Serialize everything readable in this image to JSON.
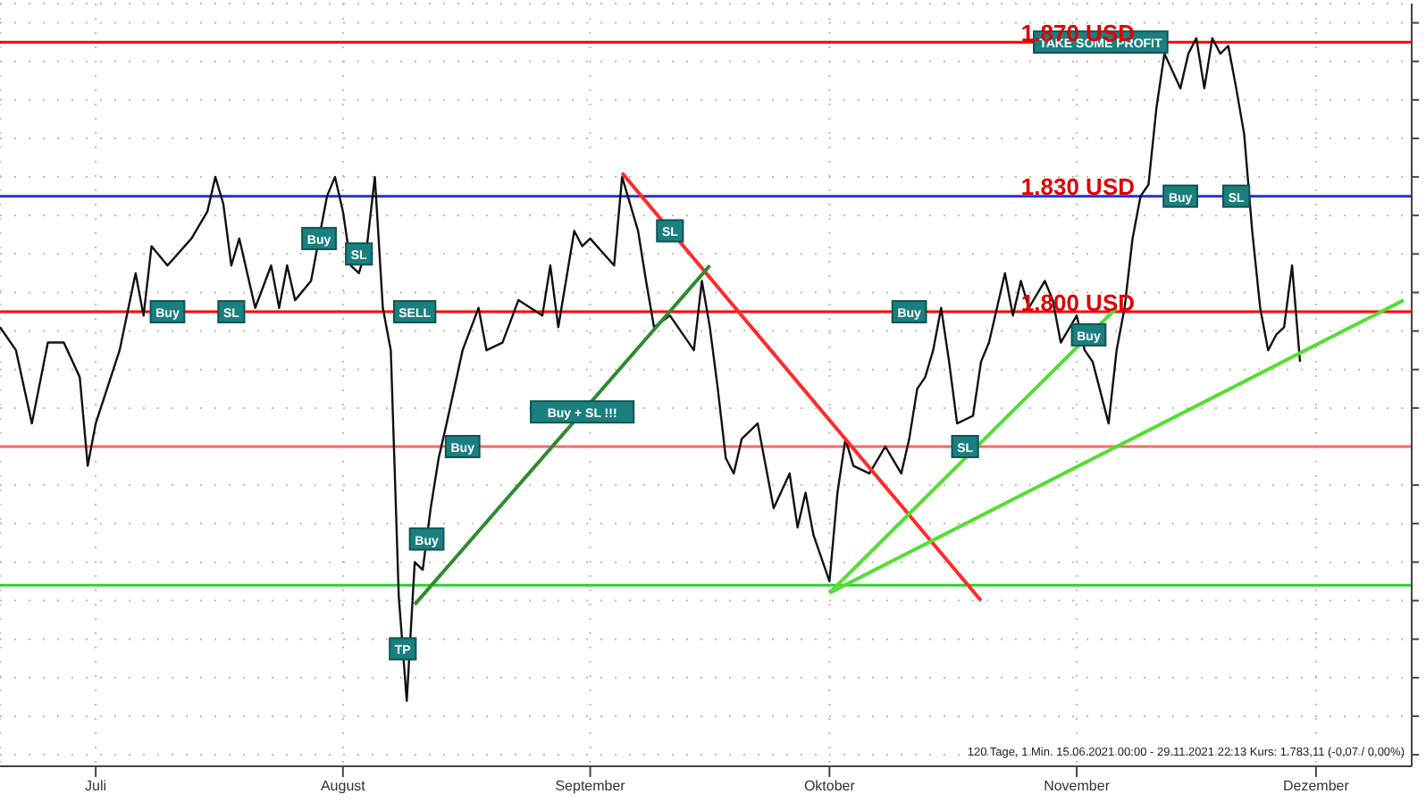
{
  "chart_data": {
    "type": "line",
    "xlim": [
      "2021-06-19",
      "2021-12-13"
    ],
    "xticks": [
      {
        "value": "2021-07-01",
        "label": "Juli"
      },
      {
        "value": "2021-08-01",
        "label": "August"
      },
      {
        "value": "2021-09-01",
        "label": "September"
      },
      {
        "value": "2021-10-01",
        "label": "Oktober"
      },
      {
        "value": "2021-11-01",
        "label": "November"
      },
      {
        "value": "2021-12-01",
        "label": "Dezember"
      }
    ],
    "ylim": [
      1682,
      1880
    ],
    "yticks": [
      {
        "value": 1685,
        "label": null
      },
      {
        "value": 1695,
        "label": null
      },
      {
        "value": 1705,
        "label": null
      },
      {
        "value": 1715,
        "label": null
      },
      {
        "value": 1725,
        "label": null
      },
      {
        "value": 1735,
        "label": null
      },
      {
        "value": 1745,
        "label": null
      },
      {
        "value": 1755,
        "label": null
      },
      {
        "value": 1775,
        "label": null
      },
      {
        "value": 1785,
        "label": null
      },
      {
        "value": 1795,
        "label": null
      },
      {
        "value": 1805,
        "label": null
      },
      {
        "value": 1815,
        "label": null
      },
      {
        "value": 1825,
        "label": null
      },
      {
        "value": 1835,
        "label": null
      },
      {
        "value": 1845,
        "label": null
      },
      {
        "value": 1855,
        "label": null
      },
      {
        "value": 1865,
        "label": null
      },
      {
        "value": 1875,
        "label": null
      }
    ],
    "tick_labels": "x",
    "grid": true,
    "marker": "none",
    "series": [
      {
        "color": "#111111",
        "x": [
          "2021-06-19",
          "2021-06-21",
          "2021-06-23",
          "2021-06-25",
          "2021-06-27",
          "2021-06-29",
          "2021-06-30",
          "2021-07-01",
          "2021-07-04",
          "2021-07-06",
          "2021-07-07",
          "2021-07-08",
          "2021-07-10",
          "2021-07-13",
          "2021-07-15",
          "2021-07-16",
          "2021-07-17",
          "2021-07-18",
          "2021-07-19",
          "2021-07-21",
          "2021-07-23",
          "2021-07-24",
          "2021-07-25",
          "2021-07-26",
          "2021-07-28",
          "2021-07-30",
          "2021-07-31",
          "2021-08-01",
          "2021-08-02",
          "2021-08-03",
          "2021-08-04",
          "2021-08-05",
          "2021-08-06",
          "2021-08-07",
          "2021-08-08",
          "2021-08-09",
          "2021-08-10",
          "2021-08-11",
          "2021-08-12",
          "2021-08-13",
          "2021-08-14",
          "2021-08-16",
          "2021-08-18",
          "2021-08-19",
          "2021-08-21",
          "2021-08-23",
          "2021-08-26",
          "2021-08-27",
          "2021-08-28",
          "2021-08-30",
          "2021-08-31",
          "2021-09-01",
          "2021-09-04",
          "2021-09-05",
          "2021-09-07",
          "2021-09-08",
          "2021-09-09",
          "2021-09-11",
          "2021-09-14",
          "2021-09-15",
          "2021-09-16",
          "2021-09-17",
          "2021-09-18",
          "2021-09-19",
          "2021-09-20",
          "2021-09-22",
          "2021-09-23",
          "2021-09-24",
          "2021-09-26",
          "2021-09-27",
          "2021-09-28",
          "2021-09-29",
          "2021-10-01",
          "2021-10-02",
          "2021-10-03",
          "2021-10-04",
          "2021-10-06",
          "2021-10-08",
          "2021-10-10",
          "2021-10-11",
          "2021-10-12",
          "2021-10-13",
          "2021-10-14",
          "2021-10-15",
          "2021-10-16",
          "2021-10-17",
          "2021-10-19",
          "2021-10-20",
          "2021-10-21",
          "2021-10-22",
          "2021-10-23",
          "2021-10-24",
          "2021-10-25",
          "2021-10-26",
          "2021-10-28",
          "2021-10-29",
          "2021-10-30",
          "2021-11-01",
          "2021-11-02",
          "2021-11-03",
          "2021-11-05",
          "2021-11-06",
          "2021-11-07",
          "2021-11-08",
          "2021-11-09",
          "2021-11-10",
          "2021-11-11",
          "2021-11-12",
          "2021-11-14",
          "2021-11-15",
          "2021-11-16",
          "2021-11-17",
          "2021-11-18",
          "2021-11-19",
          "2021-11-20",
          "2021-11-21",
          "2021-11-22",
          "2021-11-23",
          "2021-11-24",
          "2021-11-25",
          "2021-11-26",
          "2021-11-27",
          "2021-11-28",
          "2021-11-29"
        ],
        "values": [
          1796,
          1790,
          1771,
          1792,
          1792,
          1783,
          1760,
          1771,
          1790,
          1810,
          1799,
          1817,
          1812,
          1819,
          1826,
          1835,
          1828,
          1812,
          1819,
          1801,
          1812,
          1801,
          1812,
          1803,
          1808,
          1830,
          1835,
          1826,
          1812,
          1810,
          1817,
          1835,
          1801,
          1790,
          1726,
          1699,
          1735,
          1733,
          1749,
          1762,
          1771,
          1790,
          1801,
          1790,
          1792,
          1803,
          1799,
          1812,
          1796,
          1821,
          1817,
          1819,
          1812,
          1835,
          1821,
          1808,
          1796,
          1799,
          1790,
          1808,
          1796,
          1780,
          1762,
          1758,
          1767,
          1771,
          1760,
          1749,
          1758,
          1744,
          1753,
          1742,
          1730,
          1753,
          1767,
          1760,
          1758,
          1765,
          1758,
          1767,
          1780,
          1783,
          1790,
          1801,
          1787,
          1771,
          1773,
          1787,
          1792,
          1801,
          1810,
          1799,
          1808,
          1801,
          1808,
          1803,
          1792,
          1799,
          1790,
          1787,
          1771,
          1790,
          1801,
          1819,
          1830,
          1833,
          1853,
          1867,
          1858,
          1867,
          1871,
          1858,
          1871,
          1867,
          1869,
          1858,
          1846,
          1821,
          1801,
          1790,
          1794,
          1796,
          1812,
          1787
        ]
      },
      {
        "color": "#ff2a2a",
        "x": [
          "2021-09-05",
          "2021-10-20"
        ],
        "values": [
          1836,
          1725
        ]
      },
      {
        "color": "#55dd33",
        "x": [
          "2021-10-01",
          "2021-12-12"
        ],
        "values": [
          1727,
          1803
        ]
      },
      {
        "color": "#55dd33",
        "x": [
          "2021-10-01",
          "2021-11-06"
        ],
        "values": [
          1727,
          1801
        ]
      },
      {
        "color": "#2e8b2e",
        "x": [
          "2021-08-10",
          "2021-09-16"
        ],
        "values": [
          1724,
          1812
        ]
      }
    ],
    "ref_lines": [
      {
        "axis": "y",
        "value": 1870,
        "label": "1.870 USD",
        "color": "#ff0000"
      },
      {
        "axis": "y",
        "value": 1830,
        "label": "1.830 USD",
        "color": "#2233cc"
      },
      {
        "axis": "y",
        "value": 1800,
        "label": "1.800 USD",
        "color": "#ff0000"
      },
      {
        "axis": "y",
        "value": 1765,
        "color": "#ff6666"
      },
      {
        "axis": "y",
        "value": 1729,
        "color": "#33cc33"
      }
    ],
    "annotations": [
      {
        "text": "Buy",
        "x": "2021-07-10",
        "y": 1800
      },
      {
        "text": "SL",
        "x": "2021-07-18",
        "y": 1800
      },
      {
        "text": "Buy",
        "x": "2021-07-29",
        "y": 1819
      },
      {
        "text": "SL",
        "x": "2021-08-03",
        "y": 1815
      },
      {
        "text": "SELL",
        "x": "2021-08-10",
        "y": 1800
      },
      {
        "text": "Buy",
        "x": "2021-08-16",
        "y": 1765
      },
      {
        "text": "TP",
        "x": "2021-08-08T12:00",
        "y": 1712.5
      },
      {
        "text": "Buy",
        "x": "2021-08-11T12:00",
        "y": 1741
      },
      {
        "text": "Buy + SL !!!",
        "x": "2021-08-31",
        "y": 1774
      },
      {
        "text": "SL",
        "x": "2021-09-11",
        "y": 1821
      },
      {
        "text": "Buy",
        "x": "2021-10-11",
        "y": 1800
      },
      {
        "text": "SL",
        "x": "2021-10-18",
        "y": 1765
      },
      {
        "text": "Buy",
        "x": "2021-11-02T12:00",
        "y": 1794
      },
      {
        "text": "Buy",
        "x": "2021-11-14",
        "y": 1830
      },
      {
        "text": "SL",
        "x": "2021-11-21",
        "y": 1830
      },
      {
        "text": "TAKE SOME PROFIT",
        "x": "2021-11-04",
        "y": 1870
      },
      "120 Tage, 1 Min. 15.06.2021 00:00 - 29.11.2021 22:13 Kurs: 1.783,11 (-0,07 / 0,00%)"
    ]
  }
}
